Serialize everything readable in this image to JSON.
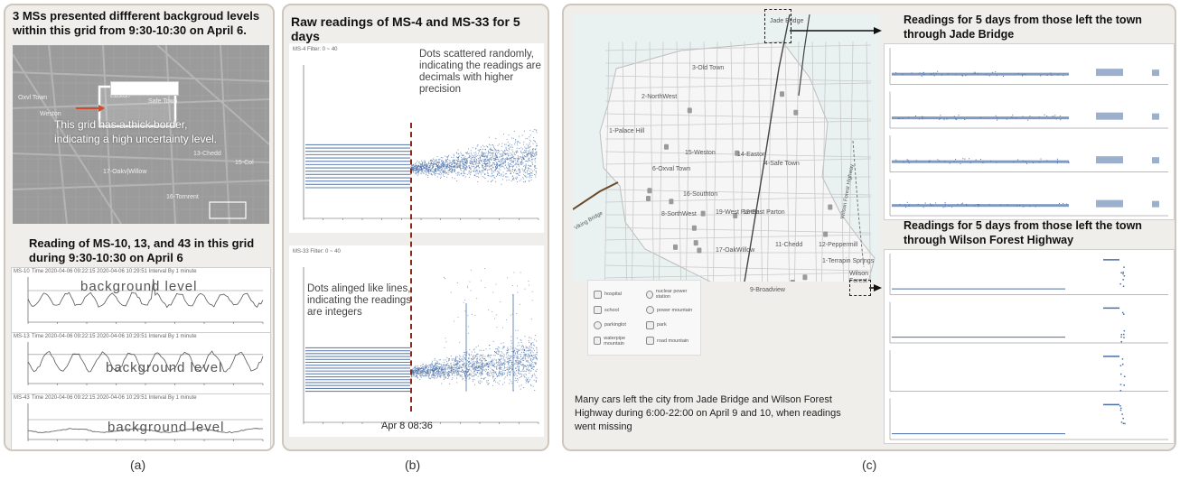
{
  "panel_a": {
    "title_line1": "3 MSs presented diffferent backgroud levels",
    "title_line2": "within this grid from 9:30-10:30 on April 6.",
    "map_labels": [
      "Oxvl Town",
      "Weston",
      "Easton",
      "Safe Town",
      "17-Oakv|Willow",
      "13-Chedd",
      "15-Col",
      "16-Tornrent"
    ],
    "callout_line1": "This grid has a thick border,",
    "callout_line2": "indicating a high uncertainty level.",
    "section_line1": "Reading of MS-10, 13, and 43 in this grid",
    "section_line2": "during 9:30-10:30 on April 6",
    "background_label": "background level",
    "charts": [
      {
        "name": "MS-10",
        "header": "Time 2020-04-06 09:22:15   2020-04-06 10:29:51   Interval By 1 minute",
        "profile": "spiky"
      },
      {
        "name": "MS-13",
        "header": "Time 2020-04-06 09:22:15   2020-04-06 10:29:51   Interval By 1 minute",
        "profile": "wavy"
      },
      {
        "name": "MS-43",
        "header": "Time 2020-04-06 09:22:15   2020-04-06 10:29:51   Interval By 1 minute",
        "profile": "flat"
      }
    ]
  },
  "panel_b": {
    "title": "Raw readings of MS-4 and MS-33 for 5 days",
    "note_top_line1": "Dots scattered randomly,",
    "note_top_line2": "indicating the readings are",
    "note_top_line3": "decimals with higher",
    "note_top_line4": "precision",
    "note_bottom_line1": "Dots alinged like lines,",
    "note_bottom_line2": "indicating the readings",
    "note_bottom_line3": "are integers",
    "divider_label": "Apr 8 08:36",
    "top_plot_header": "MS-4   Filter: 0 ~ 40",
    "bottom_plot_header": "MS-33   Filter: 0 ~ 40"
  },
  "panel_c": {
    "right_title1_line1": "Readings for 5 days from those left the town",
    "right_title1_line2": "through Jade Bridge",
    "right_title2_line1": "Readings for 5 days from those left the town",
    "right_title2_line2": "through Wilson Forest Highway",
    "map_labels": {
      "jade_bridge": "Jade Bridge",
      "old_town": "3-Old Town",
      "northwest": "2-NorthWest",
      "palace_hill": "1-Palace Hill",
      "weston": "15-Weston",
      "oxval": "6-Oxval Town",
      "easton": "14-Easton",
      "safe_town": "4-Safe Town",
      "southton": "16-Southton",
      "southwest": "8-SorthWest",
      "west_parton": "19-West Parton",
      "east_parton": "12-East Parton",
      "chedd": "11-Chedd",
      "peppermill": "12-Peppermill",
      "oak_willow": "17-OakWillow",
      "terrapin": "1-Terrapin Springs",
      "broadview": "9-Broadview",
      "wilson": "Wilson Forest",
      "highway": "Wilson Forest Highway",
      "viking": "Viking Bridge"
    },
    "legend": [
      "hospital",
      "nuclear power station",
      "school",
      "power mountain",
      "parkinglot",
      "park",
      "waterpipe mountain",
      "road mountain"
    ],
    "caption_line1": "Many cars left the city from Jade Bridge and Wilson Forest",
    "caption_line2": "Highway during 6:00-22:00 on April 9 and 10, when readings",
    "caption_line3": "went missing"
  },
  "sublabels": {
    "a": "(a)",
    "b": "(b)",
    "c": "(c)"
  },
  "colors": {
    "panel_border": "#cfc7bd",
    "panel_bg": "#f0eeea",
    "dots": "#4a6fa5",
    "divider": "#8b2a1a",
    "map_land": "#f4f4f4",
    "map_water": "#e9f1f1",
    "map_road": "#c9c9c9",
    "arrow": "#111111"
  }
}
